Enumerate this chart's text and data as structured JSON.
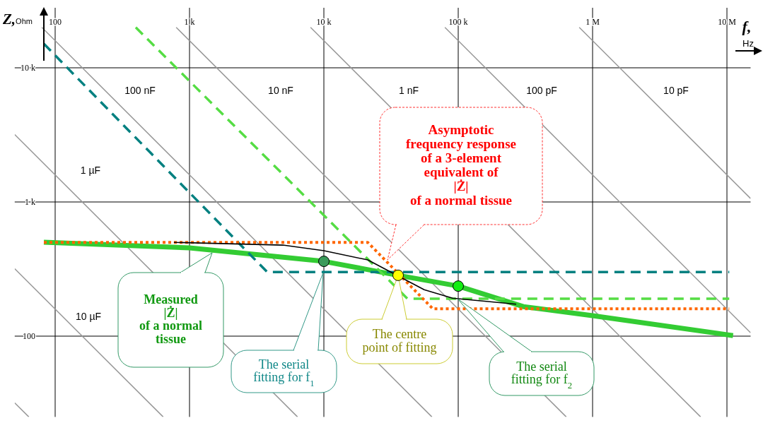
{
  "chart_data": {
    "type": "line",
    "xlabel": "f,$_{Hz}$",
    "ylabel": "Z,$_{Ohm}$",
    "log": "xy",
    "grid": true,
    "xlim": [
      50,
      15000000
    ],
    "ylim": [
      25,
      28000
    ],
    "xticks": [
      100,
      {
        "value": 1000,
        "label": "1 k"
      },
      {
        "value": 10000,
        "label": "10 k"
      },
      {
        "value": 100000,
        "label": "100 k"
      },
      {
        "value": 1000000,
        "label": "1 M"
      },
      {
        "value": 10000000,
        "label": "10 M"
      }
    ],
    "yticks": [
      100,
      {
        "value": 1000,
        "label": "1 k"
      },
      {
        "value": 10000,
        "label": "10 k"
      }
    ],
    "series": [
      {
        "color": "#999999",
        "x": [
          50,
          63.7
        ],
        "values": [
          31.8,
          25
        ]
      },
      {
        "color": "#999999",
        "x": [
          50,
          637
        ],
        "values": [
          318,
          25
        ]
      },
      {
        "color": "#999999",
        "x": [
          50,
          6366
        ],
        "values": [
          3183,
          25
        ]
      },
      {
        "color": "#999999",
        "x": [
          79.6,
          63700
        ],
        "values": [
          20000,
          25
        ]
      },
      {
        "color": "#999999",
        "x": [
          796,
          637000
        ],
        "values": [
          20000,
          25
        ]
      },
      {
        "color": "#999999",
        "x": [
          7960,
          6370000
        ],
        "values": [
          20000,
          25
        ]
      },
      {
        "color": "#999999",
        "x": [
          79600,
          15000000
        ],
        "values": [
          20000,
          106
        ]
      },
      {
        "color": "#999999",
        "x": [
          796000,
          15000000
        ],
        "values": [
          20000,
          1061
        ]
      },
      {
        "color": "#33cc33",
        "line_style": "solid",
        "x": [
          82.4,
          1000,
          10000,
          35700,
          100000,
          305000,
          1000000,
          11100000
        ],
        "values": [
          501,
          455,
          361,
          284,
          236,
          166,
          142,
          101
        ]
      },
      {
        "color": "#008080",
        "line_style": "dashed",
        "x": [
          82.4,
          3790,
          10400000
        ],
        "values": [
          15100,
          300,
          300
        ]
      },
      {
        "color": "#55dd44",
        "line_style": "dashed",
        "x": [
          398,
          41900,
          10400000
        ],
        "values": [
          20000,
          190,
          190
        ]
      },
      {
        "color": "#ff6600",
        "line_style": "dotted",
        "x": [
          82.4,
          21200,
          64700,
          10400000
        ],
        "values": [
          500,
          500,
          160,
          160
        ]
      },
      {
        "color": "#000000",
        "line_style": "solid",
        "x": [
          765,
          4950,
          10000,
          21200,
          35700,
          55800,
          90800,
          270000
        ],
        "values": [
          500,
          477,
          433,
          370,
          null,
          222,
          192,
          173
        ]
      },
      {
        "type": "scatter",
        "marker": "circle",
        "colors": [
          "#3a9a5a",
          "#ffff00",
          "#11ee11"
        ],
        "x": [
          10000,
          35700,
          100000
        ],
        "values": [
          361,
          284,
          236
        ]
      }
    ],
    "annotations": [
      "Asymptotic\nfrequency response\nof a 3-element\nequivalent of\n|Ż|\nof a normal  tissue",
      "Measured\n|Ż|\nof a normal\ntissue",
      "The serial\nfitting for f$_{1}$",
      "The centre\npoint of fitting",
      "The serial\nfitting for f$_{2}$",
      "100 nF",
      "10 nF",
      "1 nF",
      "100 pF",
      "10 pF",
      "1 µF",
      "10 µF"
    ]
  }
}
